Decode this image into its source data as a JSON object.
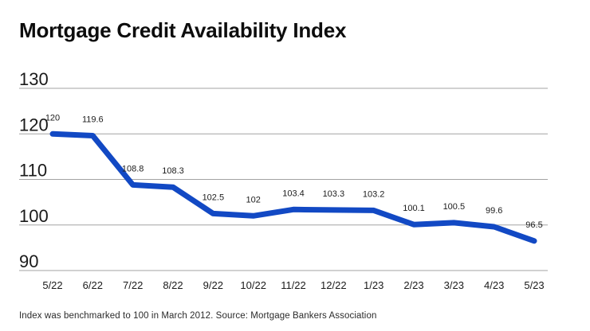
{
  "title": "Mortgage Credit Availability Index",
  "footnote": "Index was benchmarked to 100 in March 2012. Source: Mortgage Bankers Association",
  "chart_data": {
    "type": "line",
    "title": "Mortgage Credit Availability Index",
    "categories": [
      "5/22",
      "6/22",
      "7/22",
      "8/22",
      "9/22",
      "10/22",
      "11/22",
      "12/22",
      "1/23",
      "2/23",
      "3/23",
      "4/23",
      "5/23"
    ],
    "values": [
      120,
      119.6,
      108.8,
      108.3,
      102.5,
      102,
      103.4,
      103.3,
      103.2,
      100.1,
      100.5,
      99.6,
      96.5
    ],
    "point_labels": [
      "120",
      "119.6",
      "108.8",
      "108.3",
      "102.5",
      "102",
      "103.4",
      "103.3",
      "103.2",
      "100.1",
      "100.5",
      "99.6",
      "96.5"
    ],
    "xlabel": "",
    "ylabel": "",
    "ylim": [
      90,
      130
    ],
    "yticks": [
      90,
      100,
      110,
      120,
      130
    ],
    "grid": true,
    "legend": "none",
    "line_color": "#1249c4",
    "grid_color": "#a3a3a3",
    "tick_label_color": "#1a1a1a",
    "data_label_color": "#1c1c1c"
  }
}
